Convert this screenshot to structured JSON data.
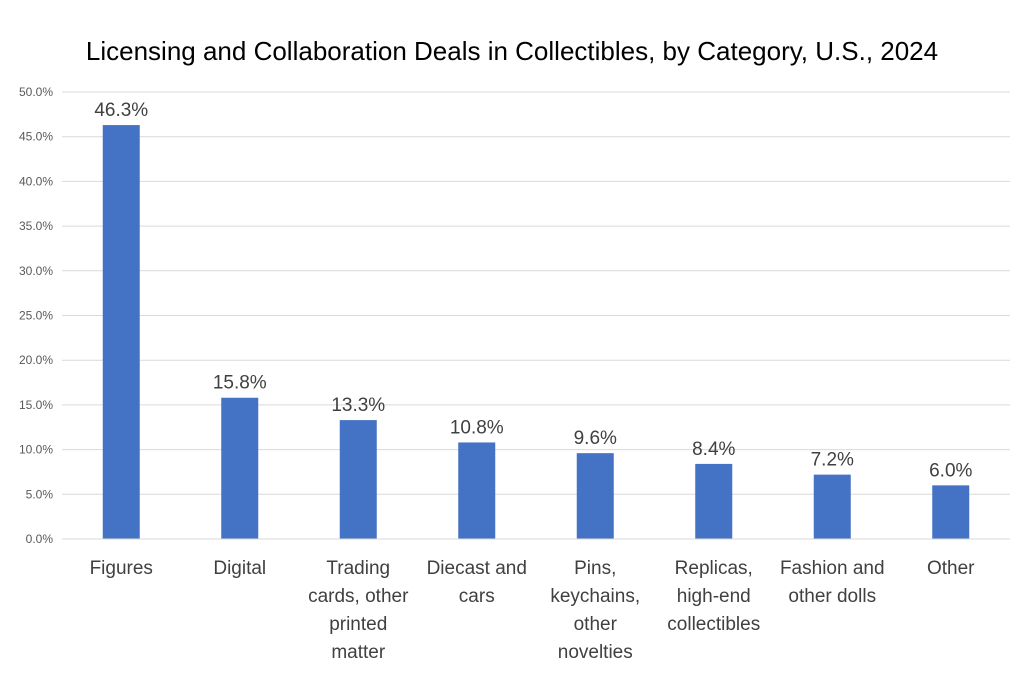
{
  "chart_data": {
    "type": "bar",
    "title": "Licensing and Collaboration Deals in Collectibles, by Category, U.S., 2024",
    "categories": [
      [
        "Figures"
      ],
      [
        "Digital"
      ],
      [
        "Trading",
        "cards, other",
        "printed",
        "matter"
      ],
      [
        "Diecast and",
        "cars"
      ],
      [
        "Pins,",
        "keychains,",
        "other",
        "novelties"
      ],
      [
        "Replicas,",
        "high-end",
        "collectibles"
      ],
      [
        "Fashion and",
        "other dolls"
      ],
      [
        "Other"
      ]
    ],
    "values": [
      46.3,
      15.8,
      13.3,
      10.8,
      9.6,
      8.4,
      7.2,
      6.0
    ],
    "data_labels": [
      "46.3%",
      "15.8%",
      "13.3%",
      "10.8%",
      "9.6%",
      "8.4%",
      "7.2%",
      "6.0%"
    ],
    "yticks": [
      "0.0%",
      "5.0%",
      "10.0%",
      "15.0%",
      "20.0%",
      "25.0%",
      "30.0%",
      "35.0%",
      "40.0%",
      "45.0%",
      "50.0%"
    ],
    "ylim": [
      0,
      50
    ],
    "grid": true,
    "bar_color": "#4472C4",
    "xlabel": "",
    "ylabel": ""
  }
}
